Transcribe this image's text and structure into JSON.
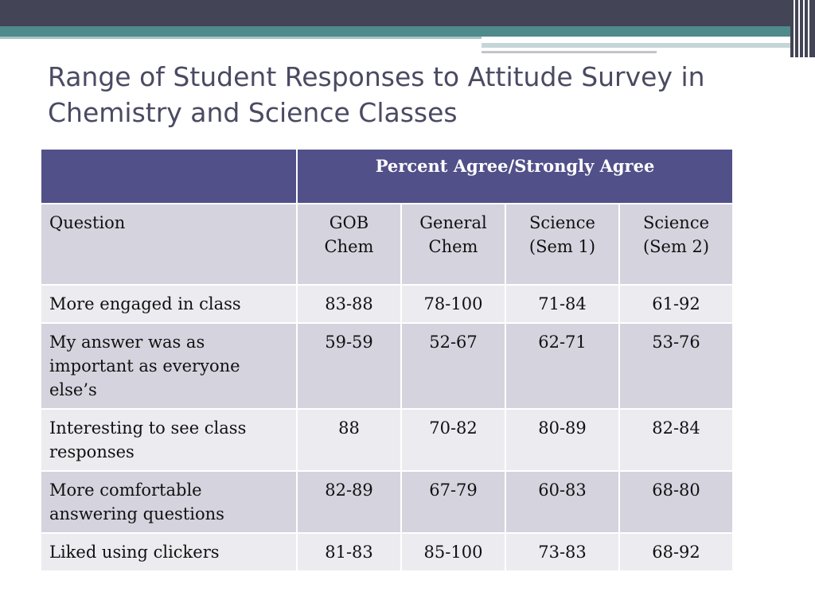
{
  "slide": {
    "title": "Range of Student Responses to Attitude Survey in Chemistry and Science Classes"
  },
  "colors": {
    "header_band": "#434455",
    "teal_band": "#4f8a8c",
    "table_header": "#525089",
    "row_dark": "#d4d3de",
    "row_light": "#ebebf0",
    "title_text": "#4a4a63"
  },
  "table": {
    "group_header": "Percent Agree/Strongly Agree",
    "columns": [
      "Question",
      "GOB Chem",
      "General Chem",
      "Science (Sem 1)",
      "Science (Sem 2)"
    ],
    "rows": [
      {
        "question": "More engaged in class",
        "values": [
          "83-88",
          "78-100",
          "71-84",
          "61-92"
        ]
      },
      {
        "question": "My  answer was as important as everyone else’s",
        "values": [
          "59-59",
          "52-67",
          "62-71",
          "53-76"
        ]
      },
      {
        "question": "Interesting to see class responses",
        "values": [
          "88",
          "70-82",
          "80-89",
          "82-84"
        ]
      },
      {
        "question": "More comfortable answering questions",
        "values": [
          "82-89",
          "67-79",
          "60-83",
          "68-80"
        ]
      },
      {
        "question": "Liked using clickers",
        "values": [
          "81-83",
          "85-100",
          "73-83",
          "68-92"
        ]
      }
    ]
  }
}
